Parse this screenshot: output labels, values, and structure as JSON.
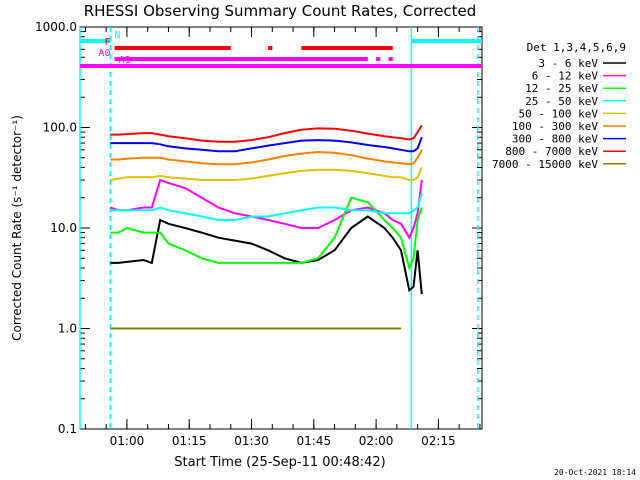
{
  "chart_data": {
    "type": "line",
    "title": "RHESSI Observing Summary Count Rates, Corrected",
    "xlabel": "Start Time (25-Sep-11 00:48:42)",
    "ylabel": "Corrected Count Rate (s⁻¹ detector⁻¹)",
    "yscale": "log",
    "ylim": [
      0.1,
      1000
    ],
    "xlim": [
      "00:48:42",
      "02:25:30"
    ],
    "x_ticks": [
      "01:00",
      "01:15",
      "01:30",
      "01:45",
      "02:00",
      "02:15"
    ],
    "y_ticks": [
      "0.1",
      "1.0",
      "10.0",
      "100.0",
      "1000.0"
    ],
    "legend_title": "Det 1,3,4,5,6,9",
    "legend_position": "right",
    "x": [
      "00:56",
      "00:58",
      "01:00",
      "01:04",
      "01:06",
      "01:08",
      "01:10",
      "01:14",
      "01:18",
      "01:22",
      "01:26",
      "01:30",
      "01:34",
      "01:38",
      "01:42",
      "01:46",
      "01:50",
      "01:54",
      "01:58",
      "02:02",
      "02:04",
      "02:06",
      "02:08",
      "02:09",
      "02:10",
      "02:11"
    ],
    "series": [
      {
        "name": "3 - 6 keV",
        "color": "#000000",
        "values": [
          4.5,
          4.5,
          4.6,
          4.8,
          4.5,
          12,
          11,
          10,
          9,
          8,
          7.5,
          7,
          6,
          5,
          4.5,
          4.8,
          6,
          10,
          13,
          10,
          8,
          6,
          2.4,
          2.6,
          6,
          2.2
        ]
      },
      {
        "name": "6 - 12 keV",
        "color": "#ff00ff",
        "values": [
          16,
          15,
          15,
          16,
          16,
          30,
          28,
          25,
          20,
          16,
          14,
          13,
          12,
          11,
          10,
          10,
          12,
          15,
          16,
          14,
          12,
          11,
          8,
          10,
          14,
          30
        ]
      },
      {
        "name": "12 - 25 keV",
        "color": "#00ff00",
        "values": [
          9,
          9,
          10,
          9,
          9,
          9,
          7,
          6,
          5,
          4.5,
          4.5,
          4.5,
          4.5,
          4.5,
          4.5,
          5,
          8,
          20,
          18,
          12,
          10,
          8,
          4,
          5,
          12,
          16
        ]
      },
      {
        "name": "25 - 50 keV",
        "color": "#00ffff",
        "values": [
          15,
          15,
          15,
          15,
          15,
          16,
          15,
          14,
          13,
          12,
          12,
          13,
          13,
          14,
          15,
          16,
          16,
          15,
          15,
          14,
          14,
          14,
          14,
          15,
          16,
          22
        ]
      },
      {
        "name": "50 - 100 keV",
        "color": "#e0c000",
        "values": [
          30,
          31,
          32,
          32,
          32,
          33,
          32,
          31,
          30,
          30,
          30,
          31,
          33,
          35,
          37,
          38,
          38,
          37,
          35,
          33,
          32,
          32,
          30,
          30,
          32,
          40
        ]
      },
      {
        "name": "100 - 300 keV",
        "color": "#ff8000",
        "values": [
          48,
          48,
          49,
          50,
          50,
          50,
          48,
          46,
          44,
          43,
          43,
          45,
          48,
          52,
          55,
          57,
          56,
          53,
          49,
          46,
          45,
          44,
          43,
          44,
          50,
          60
        ]
      },
      {
        "name": "300 - 800 keV",
        "color": "#0000ff",
        "values": [
          70,
          70,
          70,
          70,
          70,
          68,
          65,
          62,
          60,
          58,
          58,
          62,
          66,
          70,
          74,
          75,
          74,
          71,
          67,
          64,
          62,
          60,
          58,
          58,
          62,
          80
        ]
      },
      {
        "name": "800 - 7000 keV",
        "color": "#ff0000",
        "values": [
          85,
          85,
          86,
          88,
          88,
          85,
          82,
          78,
          74,
          72,
          72,
          75,
          80,
          88,
          95,
          98,
          97,
          93,
          87,
          82,
          80,
          78,
          76,
          78,
          90,
          105
        ]
      },
      {
        "name": "7000 - 15000 keV",
        "color": "#808000",
        "values": [
          1,
          1,
          1,
          1,
          1,
          1,
          1,
          1,
          1,
          1,
          1,
          1,
          1,
          1,
          1,
          1,
          1,
          1,
          1,
          1,
          1,
          1,
          null,
          null,
          null,
          null
        ]
      }
    ],
    "state_bars": [
      {
        "label": "N",
        "color": "#00ffff",
        "segments": [
          [
            "00:48:42",
            "00:56:00"
          ],
          [
            "02:08:30",
            "02:25:30"
          ]
        ]
      },
      {
        "label": "F",
        "color": "#ff0000",
        "segments": [
          [
            "00:57:00",
            "01:25:00"
          ],
          [
            "01:34:00",
            "01:35:00"
          ],
          [
            "01:42:00",
            "02:04:00"
          ]
        ]
      },
      {
        "label": "A0",
        "color": "#ff00ff",
        "segments": [
          [
            "00:57:00",
            "01:58:00"
          ],
          [
            "02:00:00",
            "02:01:00"
          ],
          [
            "02:03:00",
            "02:04:00"
          ]
        ]
      },
      {
        "label": "A1",
        "color": "#ff00ff",
        "segments": [
          [
            "00:48:42",
            "02:25:30"
          ]
        ]
      }
    ],
    "vertical_markers": [
      {
        "time": "00:48:42",
        "color": "#00ffff",
        "style": "solid"
      },
      {
        "time": "00:56:00",
        "color": "#00ffff",
        "style": "dashed"
      },
      {
        "time": "02:08:30",
        "color": "#00ffff",
        "style": "solid"
      },
      {
        "time": "02:24:30",
        "color": "#00ffff",
        "style": "dashed"
      }
    ]
  },
  "footer": {
    "date": "20-Oct-2021 18:14"
  }
}
